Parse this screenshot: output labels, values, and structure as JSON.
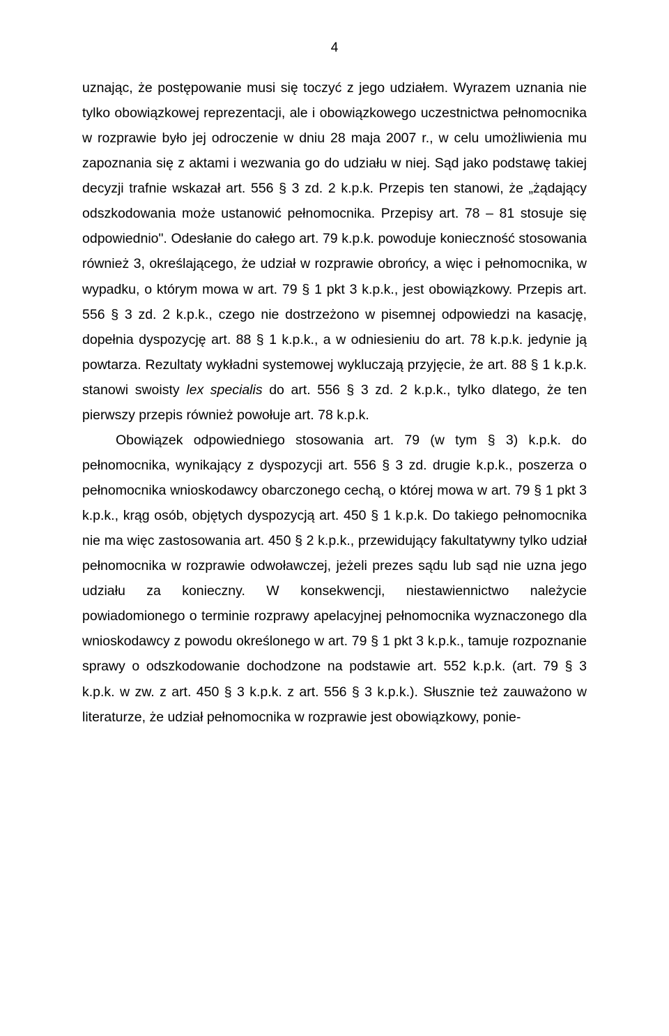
{
  "page_number": "4",
  "paragraphs": [
    {
      "indent": false,
      "runs": [
        {
          "text": "uznając, że postępowanie musi się toczyć z jego udziałem. Wyrazem uznania nie tylko obowiązkowej reprezentacji, ale i obowiązkowego uczestnictwa pełnomocnika w rozprawie było jej odroczenie w dniu 28 maja 2007 r., w celu umożliwienia mu zapoznania się z aktami i wezwania go do udziału w niej. Sąd jako podstawę takiej decyzji trafnie wskazał art. 556 § 3 zd. 2 k.p.k. Przepis ten stanowi, że „żądający odszkodowania może ustanowić pełnomocnika. Przepisy art. 78 – 81 stosuje się odpowiednio\". Odesłanie do całego art. 79 k.p.k. powoduje konieczność stosowania również 3, określającego, że udział w rozprawie obrońcy, a więc i pełnomocnika, w wypadku, o którym mowa w art. 79 § 1 pkt 3 k.p.k., jest obowiązkowy. Przepis art. 556 § 3 zd. 2 k.p.k., czego nie dostrzeżono w pisemnej odpowiedzi na kasację, dopełnia dyspozycję art. 88 § 1 k.p.k., a w odniesieniu do art. 78 k.p.k. jedynie ją powtarza. Rezultaty wykładni systemowej wykluczają przyjęcie, że art. 88 § 1 k.p.k. stanowi swoisty ",
          "italic": false
        },
        {
          "text": "lex specialis",
          "italic": true
        },
        {
          "text": " do art. 556 § 3 zd. 2 k.p.k., tylko dlatego, że ten pierwszy przepis również powołuje art. 78 k.p.k.",
          "italic": false
        }
      ]
    },
    {
      "indent": true,
      "runs": [
        {
          "text": "Obowiązek odpowiedniego stosowania art. 79 (w tym § 3) k.p.k. do pełnomocnika, wynikający z dyspozycji art. 556 § 3 zd. drugie k.p.k., poszerza o pełnomocnika wnioskodawcy obarczonego cechą, o której mowa w art. 79 § 1 pkt 3 k.p.k., krąg osób, objętych dyspozycją art. 450 § 1 k.p.k. Do takiego pełnomocnika nie ma więc zastosowania art. 450 § 2 k.p.k., przewidujący fakultatywny tylko udział pełnomocnika w rozprawie odwoławczej, jeżeli prezes sądu lub sąd nie uzna jego udziału za konieczny. W konsekwencji, niestawiennictwo należycie powiadomionego o terminie rozprawy apelacyjnej pełnomocnika wyznaczonego dla wnioskodawcy z powodu określonego w art. 79 § 1 pkt 3 k.p.k., tamuje rozpoznanie sprawy o odszkodowanie dochodzone na podstawie art. 552 k.p.k. (art. 79 § 3 k.p.k. w zw. z art. 450 § 3 k.p.k. z art. 556 § 3 k.p.k.). Słusznie też zauważono w literaturze, że udział pełnomocnika w rozprawie jest obowiązkowy, ponie-",
          "italic": false
        }
      ]
    }
  ]
}
